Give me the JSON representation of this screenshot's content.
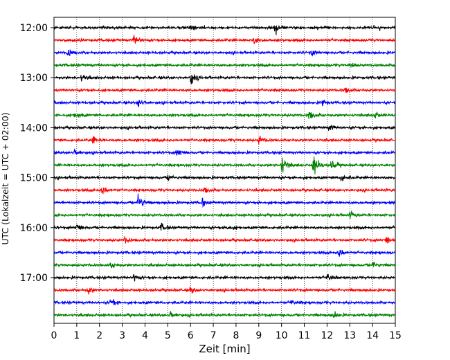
{
  "chart_data": {
    "type": "line",
    "title": "",
    "xlabel": "Zeit  [min]",
    "ylabel": "UTC (Lokalzeit = UTC + 02:00)",
    "xlim": [
      0,
      15
    ],
    "x_ticks": [
      "0",
      "1",
      "2",
      "3",
      "4",
      "5",
      "6",
      "7",
      "8",
      "9",
      "10",
      "11",
      "12",
      "13",
      "14",
      "15"
    ],
    "y_tick_labels": [
      "12:00",
      "13:00",
      "14:00",
      "15:00",
      "16:00",
      "17:00"
    ],
    "grid": "vertical-dotted",
    "trace_colors": [
      "#000000",
      "#ff0000",
      "#0000ff",
      "#008000"
    ],
    "traces": [
      {
        "start": "12:00",
        "color": "#000000",
        "events": [
          [
            9.7,
            2.5
          ],
          [
            6.0,
            1.2
          ]
        ]
      },
      {
        "start": "12:15",
        "color": "#ff0000",
        "events": [
          [
            3.5,
            2.0
          ],
          [
            8.8,
            1.2
          ]
        ]
      },
      {
        "start": "12:30",
        "color": "#0000ff",
        "events": [
          [
            0.6,
            1.2
          ],
          [
            11.3,
            1.0
          ]
        ]
      },
      {
        "start": "12:45",
        "color": "#008000",
        "events": [
          [
            13.0,
            1.0
          ]
        ]
      },
      {
        "start": "13:00",
        "color": "#000000",
        "events": [
          [
            6.0,
            2.2
          ],
          [
            1.2,
            1.2
          ]
        ]
      },
      {
        "start": "13:15",
        "color": "#ff0000",
        "events": [
          [
            12.8,
            1.0
          ]
        ]
      },
      {
        "start": "13:30",
        "color": "#0000ff",
        "events": [
          [
            3.7,
            1.3
          ],
          [
            11.8,
            1.2
          ]
        ]
      },
      {
        "start": "13:45",
        "color": "#008000",
        "events": [
          [
            0.9,
            1.2
          ],
          [
            11.2,
            1.8
          ],
          [
            14.1,
            1.2
          ]
        ]
      },
      {
        "start": "14:00",
        "color": "#000000",
        "events": [
          [
            12.1,
            1.0
          ]
        ]
      },
      {
        "start": "14:15",
        "color": "#ff0000",
        "events": [
          [
            9.0,
            1.8
          ],
          [
            1.7,
            1.2
          ]
        ]
      },
      {
        "start": "14:30",
        "color": "#0000ff",
        "events": [
          [
            5.4,
            1.3
          ],
          [
            0.9,
            1.0
          ]
        ]
      },
      {
        "start": "14:45",
        "color": "#008000",
        "events": [
          [
            10.0,
            4.0
          ],
          [
            11.4,
            3.6
          ],
          [
            12.2,
            1.8
          ]
        ]
      },
      {
        "start": "15:00",
        "color": "#000000",
        "events": [
          [
            12.6,
            1.3
          ],
          [
            5.0,
            1.0
          ]
        ]
      },
      {
        "start": "15:15",
        "color": "#ff0000",
        "events": [
          [
            2.1,
            1.8
          ],
          [
            6.6,
            1.2
          ]
        ]
      },
      {
        "start": "15:30",
        "color": "#0000ff",
        "events": [
          [
            3.7,
            3.0
          ],
          [
            6.5,
            1.2
          ]
        ]
      },
      {
        "start": "15:45",
        "color": "#008000",
        "events": [
          [
            13.0,
            1.2
          ]
        ]
      },
      {
        "start": "16:00",
        "color": "#000000",
        "events": [
          [
            4.7,
            1.5
          ],
          [
            1.0,
            1.2
          ],
          [
            7.6,
            1.0
          ]
        ]
      },
      {
        "start": "16:15",
        "color": "#ff0000",
        "events": [
          [
            14.6,
            1.2
          ],
          [
            3.1,
            1.0
          ]
        ]
      },
      {
        "start": "16:30",
        "color": "#0000ff",
        "events": [
          [
            12.5,
            1.8
          ]
        ]
      },
      {
        "start": "16:45",
        "color": "#008000",
        "events": [
          [
            14.0,
            1.2
          ],
          [
            2.5,
            1.0
          ]
        ]
      },
      {
        "start": "17:00",
        "color": "#000000",
        "events": [
          [
            12.0,
            1.5
          ],
          [
            3.5,
            1.2
          ]
        ]
      },
      {
        "start": "17:15",
        "color": "#ff0000",
        "events": [
          [
            1.5,
            1.5
          ],
          [
            6.0,
            1.2
          ]
        ]
      },
      {
        "start": "17:30",
        "color": "#0000ff",
        "events": [
          [
            2.5,
            1.2
          ],
          [
            10.4,
            1.2
          ]
        ]
      },
      {
        "start": "17:45",
        "color": "#008000",
        "events": [
          [
            5.1,
            1.3
          ],
          [
            12.3,
            1.0
          ]
        ]
      }
    ]
  }
}
